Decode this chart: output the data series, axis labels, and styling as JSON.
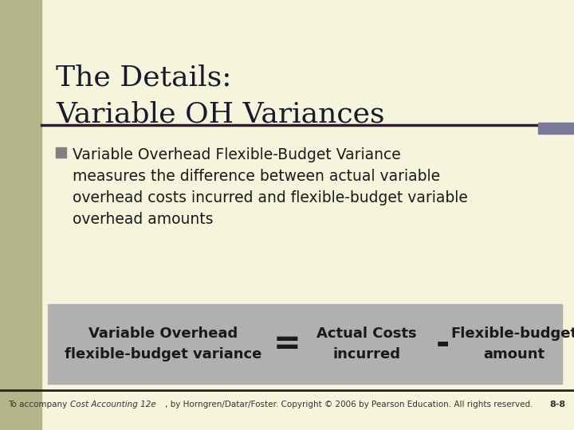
{
  "title_line1": "The Details:",
  "title_line2": "Variable OH Variances",
  "bullet_text_line1": "Variable Overhead Flexible-Budget Variance",
  "bullet_text_line2": "measures the difference between actual variable",
  "bullet_text_line3": "overhead costs incurred and flexible-budget variable",
  "bullet_text_line4": "overhead amounts",
  "footer_text": "To accompany Cost Accounting 12e, by Horngren/Datar/Foster. Copyright © 2006 by Pearson Education. All rights reserved.",
  "footer_right": "8-8",
  "bg_color": "#f5f5dc",
  "left_bar_color": "#b5b58a",
  "title_color": "#1a1a2e",
  "bullet_color": "#1a1a1a",
  "formula_bg": "#b0b0b0",
  "formula_text_color": "#1a1a1a",
  "separator_color": "#2d1b2e",
  "footer_color": "#333333",
  "right_accent_color": "#7a7a9a",
  "bullet_marker_color": "#808080"
}
